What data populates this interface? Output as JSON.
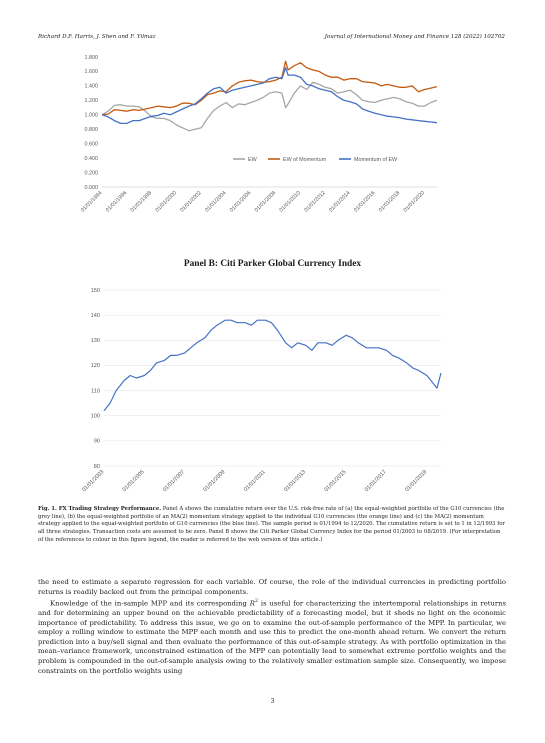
{
  "header": {
    "authors": "Richard D.F. Harris, J. Shen and F. Yilmaz",
    "journal": "Journal of International Money and Finance 128 (2022) 102702"
  },
  "chart_data": [
    {
      "type": "line",
      "title": "",
      "ylim": [
        0,
        1.8
      ],
      "yticks": [
        "0.000",
        "0.200",
        "0.400",
        "0.600",
        "0.800",
        "1.000",
        "1.200",
        "1.400",
        "1.600",
        "1.800"
      ],
      "xticks": [
        "01/01/1994",
        "01/01/1996",
        "01/01/1998",
        "01/01/2000",
        "01/01/2002",
        "01/01/2004",
        "01/01/2006",
        "01/01/2008",
        "01/01/2010",
        "01/01/2012",
        "01/01/2014",
        "01/01/2016",
        "01/01/2018",
        "01/01/2020"
      ],
      "xrange": [
        1994.0,
        2021.0
      ],
      "legend_position": "inside-center",
      "series": [
        {
          "name": "EW",
          "color": "#a6a6a6",
          "x": [
            1994.0,
            1994.5,
            1995.0,
            1995.5,
            1996.0,
            1996.5,
            1997.0,
            1997.5,
            1998.0,
            1998.5,
            1999.0,
            1999.5,
            2000.0,
            2000.5,
            2001.0,
            2001.5,
            2002.0,
            2002.5,
            2003.0,
            2003.5,
            2004.0,
            2004.5,
            2005.0,
            2005.5,
            2006.0,
            2006.5,
            2007.0,
            2007.5,
            2008.0,
            2008.5,
            2008.8,
            2009.0,
            2009.5,
            2010.0,
            2010.5,
            2011.0,
            2011.5,
            2012.0,
            2012.5,
            2013.0,
            2013.5,
            2014.0,
            2014.5,
            2015.0,
            2015.5,
            2016.0,
            2016.5,
            2017.0,
            2017.5,
            2018.0,
            2018.5,
            2019.0,
            2019.5,
            2020.0,
            2020.5,
            2021.0
          ],
          "y": [
            1.0,
            1.05,
            1.13,
            1.14,
            1.12,
            1.12,
            1.11,
            1.05,
            0.97,
            0.95,
            0.95,
            0.92,
            0.86,
            0.82,
            0.78,
            0.8,
            0.82,
            0.95,
            1.06,
            1.12,
            1.17,
            1.1,
            1.15,
            1.14,
            1.17,
            1.2,
            1.24,
            1.3,
            1.32,
            1.3,
            1.1,
            1.15,
            1.3,
            1.4,
            1.35,
            1.45,
            1.42,
            1.38,
            1.36,
            1.3,
            1.32,
            1.34,
            1.28,
            1.2,
            1.18,
            1.17,
            1.2,
            1.22,
            1.24,
            1.22,
            1.18,
            1.16,
            1.12,
            1.12,
            1.17,
            1.2
          ]
        },
        {
          "name": "EW of Momentum",
          "color": "#c55a11",
          "x": [
            1994.0,
            1994.5,
            1995.0,
            1995.5,
            1996.0,
            1996.5,
            1997.0,
            1997.5,
            1998.0,
            1998.5,
            1999.0,
            1999.5,
            2000.0,
            2000.5,
            2001.0,
            2001.5,
            2002.0,
            2002.5,
            2003.0,
            2003.5,
            2004.0,
            2004.5,
            2005.0,
            2005.5,
            2006.0,
            2006.5,
            2007.0,
            2007.5,
            2008.0,
            2008.5,
            2008.8,
            2009.0,
            2009.5,
            2010.0,
            2010.5,
            2011.0,
            2011.5,
            2012.0,
            2012.5,
            2013.0,
            2013.5,
            2014.0,
            2014.5,
            2015.0,
            2015.5,
            2016.0,
            2016.5,
            2017.0,
            2017.5,
            2018.0,
            2018.5,
            2019.0,
            2019.5,
            2020.0,
            2020.5,
            2021.0
          ],
          "y": [
            1.0,
            1.01,
            1.07,
            1.06,
            1.05,
            1.07,
            1.06,
            1.08,
            1.1,
            1.12,
            1.11,
            1.1,
            1.12,
            1.16,
            1.16,
            1.14,
            1.2,
            1.28,
            1.3,
            1.33,
            1.32,
            1.4,
            1.45,
            1.47,
            1.48,
            1.46,
            1.45,
            1.46,
            1.48,
            1.52,
            1.74,
            1.62,
            1.68,
            1.72,
            1.65,
            1.62,
            1.6,
            1.55,
            1.52,
            1.52,
            1.48,
            1.5,
            1.5,
            1.46,
            1.45,
            1.44,
            1.4,
            1.42,
            1.4,
            1.38,
            1.38,
            1.4,
            1.32,
            1.35,
            1.37,
            1.39
          ]
        },
        {
          "name": "Momentum of EW",
          "color": "#4472c4",
          "x": [
            1994.0,
            1994.5,
            1995.0,
            1995.5,
            1996.0,
            1996.5,
            1997.0,
            1997.5,
            1998.0,
            1998.5,
            1999.0,
            1999.5,
            2000.0,
            2000.5,
            2001.0,
            2001.5,
            2002.0,
            2002.5,
            2003.0,
            2003.5,
            2004.0,
            2004.5,
            2005.0,
            2005.5,
            2006.0,
            2006.5,
            2007.0,
            2007.5,
            2008.0,
            2008.5,
            2008.8,
            2009.0,
            2009.5,
            2010.0,
            2010.5,
            2011.0,
            2011.5,
            2012.0,
            2012.5,
            2013.0,
            2013.5,
            2014.0,
            2014.5,
            2015.0,
            2015.5,
            2016.0,
            2016.5,
            2017.0,
            2017.5,
            2018.0,
            2018.5,
            2019.0,
            2019.5,
            2020.0,
            2020.5,
            2021.0
          ],
          "y": [
            1.0,
            0.97,
            0.92,
            0.88,
            0.88,
            0.92,
            0.92,
            0.95,
            0.98,
            0.99,
            1.02,
            1.0,
            1.04,
            1.08,
            1.12,
            1.15,
            1.22,
            1.3,
            1.36,
            1.38,
            1.3,
            1.34,
            1.36,
            1.38,
            1.4,
            1.42,
            1.44,
            1.5,
            1.52,
            1.5,
            1.65,
            1.55,
            1.55,
            1.52,
            1.42,
            1.4,
            1.36,
            1.34,
            1.32,
            1.25,
            1.2,
            1.18,
            1.15,
            1.08,
            1.05,
            1.02,
            1.0,
            0.98,
            0.97,
            0.96,
            0.94,
            0.93,
            0.92,
            0.91,
            0.9,
            0.89
          ]
        }
      ]
    },
    {
      "type": "line",
      "title": "Panel B: Citi Parker Global Currency Index",
      "ylim": [
        80,
        150
      ],
      "yticks": [
        "80",
        "90",
        "100",
        "110",
        "120",
        "130",
        "140",
        "150"
      ],
      "xticks": [
        "01/01/2003",
        "01/01/2005",
        "01/01/2007",
        "01/01/2009",
        "01/01/2011",
        "01/01/2013",
        "01/01/2015",
        "01/01/2017",
        "01/01/2019"
      ],
      "xrange": [
        2003.0,
        2019.7
      ],
      "series": [
        {
          "name": "",
          "color": "#4472c4",
          "x": [
            2003.0,
            2003.3,
            2003.6,
            2004.0,
            2004.3,
            2004.6,
            2005.0,
            2005.3,
            2005.6,
            2006.0,
            2006.3,
            2006.6,
            2007.0,
            2007.3,
            2007.6,
            2008.0,
            2008.3,
            2008.6,
            2009.0,
            2009.3,
            2009.6,
            2010.0,
            2010.3,
            2010.6,
            2011.0,
            2011.3,
            2011.6,
            2012.0,
            2012.3,
            2012.6,
            2013.0,
            2013.3,
            2013.6,
            2014.0,
            2014.3,
            2014.6,
            2015.0,
            2015.3,
            2015.6,
            2016.0,
            2016.3,
            2016.6,
            2017.0,
            2017.3,
            2017.6,
            2018.0,
            2018.3,
            2018.6,
            2019.0,
            2019.3,
            2019.5,
            2019.7
          ],
          "y": [
            102,
            105,
            110,
            114,
            116,
            115,
            116,
            118,
            121,
            122,
            124,
            124,
            125,
            127,
            129,
            131,
            134,
            136,
            138,
            138,
            137,
            137,
            136,
            138,
            138,
            137,
            134,
            129,
            127,
            129,
            128,
            126,
            129,
            129,
            128,
            130,
            132,
            131,
            129,
            127,
            127,
            127,
            126,
            124,
            123,
            121,
            119,
            118,
            116,
            113,
            111,
            117
          ]
        }
      ]
    }
  ],
  "figure": {
    "panel_b_title": "Panel B: Citi Parker Global Currency Index",
    "caption_label": "Fig. 1.  FX Trading Strategy Performance.",
    "caption_text": " Panel A shows the cumulative return over the U.S. risk-free rate of (a) the equal-weighted portfolio of the G10 currencies (the grey line), (b) the equal-weighted portfolio of an MA(2) momentum strategy applied to the individual G10 currencies (the orange line) and (c) the MA(2) momentum strategy applied to the equal-weighted portfolio of G10 currencies (the blue line). The sample period is 01/1994 to 12/2020. The cumulative return is set to 1 in 12/1993 for all three strategies. Transaction costs are assumed to be zero. Panel B shows the Citi Parker Global Currency Index for the period 01/2003 to 08/2019. (For interpretation of the references to colour in this figure legend, the reader is referred to the web version of this article.)"
  },
  "body": {
    "p1": "the need to estimate a separate regression for each variable. Of course, the role of the individual currencies in predicting portfolio returns is readily backed out from the principal components.",
    "p2_a": "Knowledge of the in-sample MPP and its corresponding ",
    "p2_r": "R",
    "p2_sup": "2",
    "p2_b": " is useful for characterizing the intertemporal relationships in returns and for determining an upper bound on the achievable predictability of a forecasting model, but it sheds no light on the economic importance of predictability. To address this issue, we go on to examine the out-of-sample performance of the MPP. In particular, we employ a rolling window to estimate the MPP each month and use this to predict the one-month ahead return. We convert the return prediction into a buy/sell signal and then evaluate the performance of this out-of-sample strategy. As with portfolio optimization in the mean–variance framework, unconstrained estimation of the MPP can potentially lead to somewhat extreme portfolio weights and the problem is compounded in the out-of-sample analysis owing to the relatively smaller estimation sample size. Consequently, we impose constraints on the portfolio weights using"
  },
  "page_number": "3"
}
